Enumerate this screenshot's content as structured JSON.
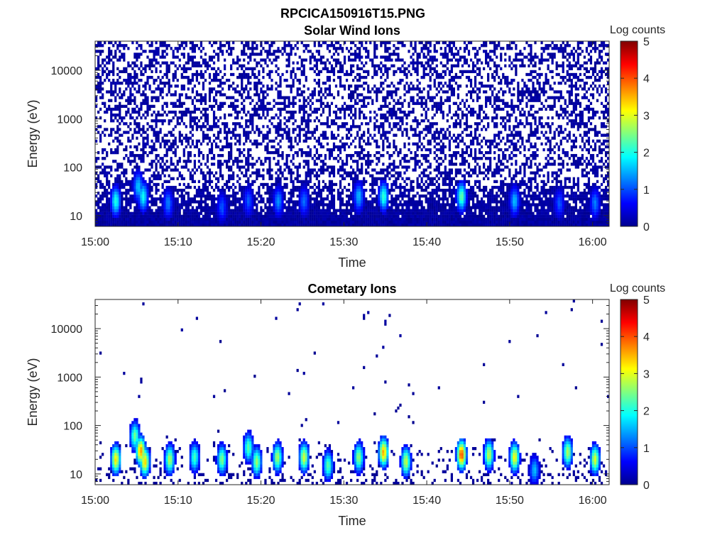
{
  "figure": {
    "supertitle": "RPCICA150916T15.PNG"
  },
  "colormap": {
    "name": "jet",
    "stops": [
      "#00008f",
      "#0000ff",
      "#0080ff",
      "#00ffff",
      "#80ff80",
      "#ffff00",
      "#ff8000",
      "#ff0000",
      "#800000"
    ]
  },
  "chart_data": [
    {
      "type": "heatmap",
      "title": "Solar Wind Ions",
      "xlabel": "Time",
      "ylabel": "Energy (eV)",
      "colorbar_label": "Log counts",
      "y_scale": "log",
      "xlim": [
        "15:00",
        "16:02"
      ],
      "ylim": [
        6,
        40000
      ],
      "clim": [
        0,
        5
      ],
      "x_ticks": [
        "15:00",
        "15:10",
        "15:20",
        "15:30",
        "15:40",
        "15:50",
        "16:00"
      ],
      "x_tick_minutes": [
        0,
        10,
        20,
        30,
        40,
        50,
        60
      ],
      "y_ticks": [
        "10",
        "100",
        "1000",
        "10000"
      ],
      "y_tick_values": [
        10,
        100,
        1000,
        10000
      ],
      "colorbar_ticks": [
        "0",
        "1",
        "2",
        "3",
        "4",
        "5"
      ],
      "background_density": 0.42,
      "background_level": 0.2,
      "low_energy_fill": 0.75,
      "features": [
        {
          "time_min": 2.5,
          "energy_ev": 20,
          "log_counts": 2.0
        },
        {
          "time_min": 5.2,
          "energy_ev": 40,
          "log_counts": 1.6
        },
        {
          "time_min": 5.8,
          "energy_ev": 25,
          "log_counts": 1.9
        },
        {
          "time_min": 8.8,
          "energy_ev": 18,
          "log_counts": 1.2
        },
        {
          "time_min": 15.3,
          "energy_ev": 15,
          "log_counts": 1.0
        },
        {
          "time_min": 18.5,
          "energy_ev": 20,
          "log_counts": 1.0
        },
        {
          "time_min": 22.1,
          "energy_ev": 20,
          "log_counts": 1.3
        },
        {
          "time_min": 25.2,
          "energy_ev": 20,
          "log_counts": 1.1
        },
        {
          "time_min": 31.8,
          "energy_ev": 25,
          "log_counts": 1.5
        },
        {
          "time_min": 34.8,
          "energy_ev": 25,
          "log_counts": 2.1
        },
        {
          "time_min": 44.2,
          "energy_ev": 25,
          "log_counts": 2.3
        },
        {
          "time_min": 50.6,
          "energy_ev": 20,
          "log_counts": 1.5
        },
        {
          "time_min": 56.0,
          "energy_ev": 18,
          "log_counts": 1.0
        },
        {
          "time_min": 60.3,
          "energy_ev": 18,
          "log_counts": 1.2
        }
      ]
    },
    {
      "type": "heatmap",
      "title": "Cometary Ions",
      "xlabel": "Time",
      "ylabel": "Energy (eV)",
      "colorbar_label": "Log counts",
      "y_scale": "log",
      "xlim": [
        "15:00",
        "16:02"
      ],
      "ylim": [
        6,
        40000
      ],
      "clim": [
        0,
        5
      ],
      "x_ticks": [
        "15:00",
        "15:10",
        "15:20",
        "15:30",
        "15:40",
        "15:50",
        "16:00"
      ],
      "x_tick_minutes": [
        0,
        10,
        20,
        30,
        40,
        50,
        60
      ],
      "y_ticks": [
        "10",
        "100",
        "1000",
        "10000"
      ],
      "y_tick_values": [
        10,
        100,
        1000,
        10000
      ],
      "colorbar_ticks": [
        "0",
        "1",
        "2",
        "3",
        "4",
        "5"
      ],
      "background_density": 0.006,
      "background_level": 0.1,
      "low_energy_fill": 0.22,
      "features": [
        {
          "time_min": 2.5,
          "energy_ev": 20,
          "log_counts": 3.2
        },
        {
          "time_min": 4.8,
          "energy_ev": 60,
          "log_counts": 2.4
        },
        {
          "time_min": 5.5,
          "energy_ev": 30,
          "log_counts": 3.6
        },
        {
          "time_min": 6.0,
          "energy_ev": 18,
          "log_counts": 3.3
        },
        {
          "time_min": 9.0,
          "energy_ev": 20,
          "log_counts": 2.7
        },
        {
          "time_min": 12.0,
          "energy_ev": 22,
          "log_counts": 2.2
        },
        {
          "time_min": 15.3,
          "energy_ev": 20,
          "log_counts": 2.5
        },
        {
          "time_min": 18.5,
          "energy_ev": 35,
          "log_counts": 2.3
        },
        {
          "time_min": 19.5,
          "energy_ev": 18,
          "log_counts": 2.6
        },
        {
          "time_min": 22.0,
          "energy_ev": 22,
          "log_counts": 2.7
        },
        {
          "time_min": 25.2,
          "energy_ev": 22,
          "log_counts": 2.9
        },
        {
          "time_min": 28.1,
          "energy_ev": 15,
          "log_counts": 2.3
        },
        {
          "time_min": 31.8,
          "energy_ev": 22,
          "log_counts": 2.6
        },
        {
          "time_min": 34.8,
          "energy_ev": 28,
          "log_counts": 3.5
        },
        {
          "time_min": 37.5,
          "energy_ev": 18,
          "log_counts": 2.8
        },
        {
          "time_min": 44.2,
          "energy_ev": 25,
          "log_counts": 4.0
        },
        {
          "time_min": 47.5,
          "energy_ev": 25,
          "log_counts": 2.8
        },
        {
          "time_min": 50.6,
          "energy_ev": 22,
          "log_counts": 3.1
        },
        {
          "time_min": 53.0,
          "energy_ev": 12,
          "log_counts": 1.5
        },
        {
          "time_min": 57.0,
          "energy_ev": 28,
          "log_counts": 2.7
        },
        {
          "time_min": 60.3,
          "energy_ev": 20,
          "log_counts": 2.9
        }
      ]
    }
  ]
}
